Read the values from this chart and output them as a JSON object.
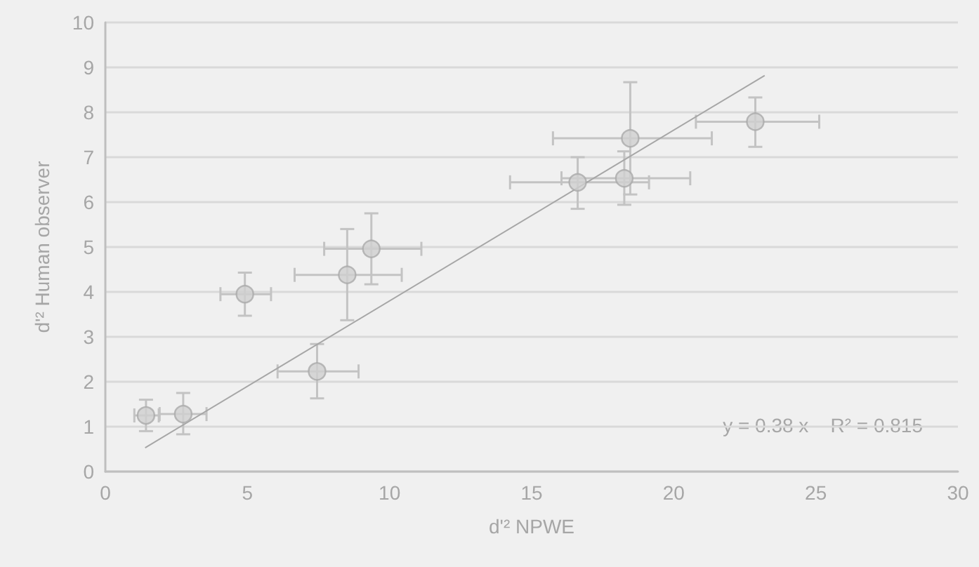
{
  "chart_data": {
    "type": "scatter",
    "xlabel": "d'² NPWE",
    "ylabel": "d'² Human observer",
    "x": [
      1.43,
      2.74,
      7.45,
      4.91,
      8.51,
      9.36,
      16.62,
      18.26,
      18.47,
      22.87
    ],
    "values": [
      1.25,
      1.28,
      2.23,
      3.95,
      4.38,
      4.96,
      6.44,
      6.53,
      7.42,
      7.79
    ],
    "errors": [
      [
        0.9,
        1.6
      ],
      [
        0.83,
        1.75
      ],
      [
        1.63,
        2.84
      ],
      [
        3.47,
        4.43
      ],
      [
        3.37,
        5.4
      ],
      [
        4.17,
        5.75
      ],
      [
        5.85,
        7.0
      ],
      [
        5.94,
        7.13
      ],
      [
        6.17,
        8.67
      ],
      [
        7.23,
        8.33
      ]
    ],
    "xerrors": [
      [
        1.02,
        1.88
      ],
      [
        1.91,
        3.56
      ],
      [
        6.06,
        8.91
      ],
      [
        4.05,
        5.83
      ],
      [
        6.66,
        10.43
      ],
      [
        7.7,
        11.12
      ],
      [
        14.24,
        19.13
      ],
      [
        16.05,
        20.58
      ],
      [
        15.75,
        21.34
      ],
      [
        20.78,
        25.12
      ]
    ],
    "color": "#cfcfcf",
    "marker": "circle",
    "series": [
      {
        "type": "line",
        "marker": "none",
        "color": "#a6a6a6",
        "x": [
          1.4,
          23.2
        ],
        "values": [
          0.53,
          8.82
        ]
      }
    ],
    "annotations": [
      "y = 0.38 x    R² = 0.815"
    ],
    "xlim": [
      0,
      30
    ],
    "xticks": [
      0,
      5,
      10,
      15,
      20,
      25,
      30
    ],
    "ylim": [
      0,
      10
    ],
    "yticks": [
      0,
      1,
      2,
      3,
      4,
      5,
      6,
      7,
      8,
      9,
      10
    ],
    "grid": "y"
  }
}
